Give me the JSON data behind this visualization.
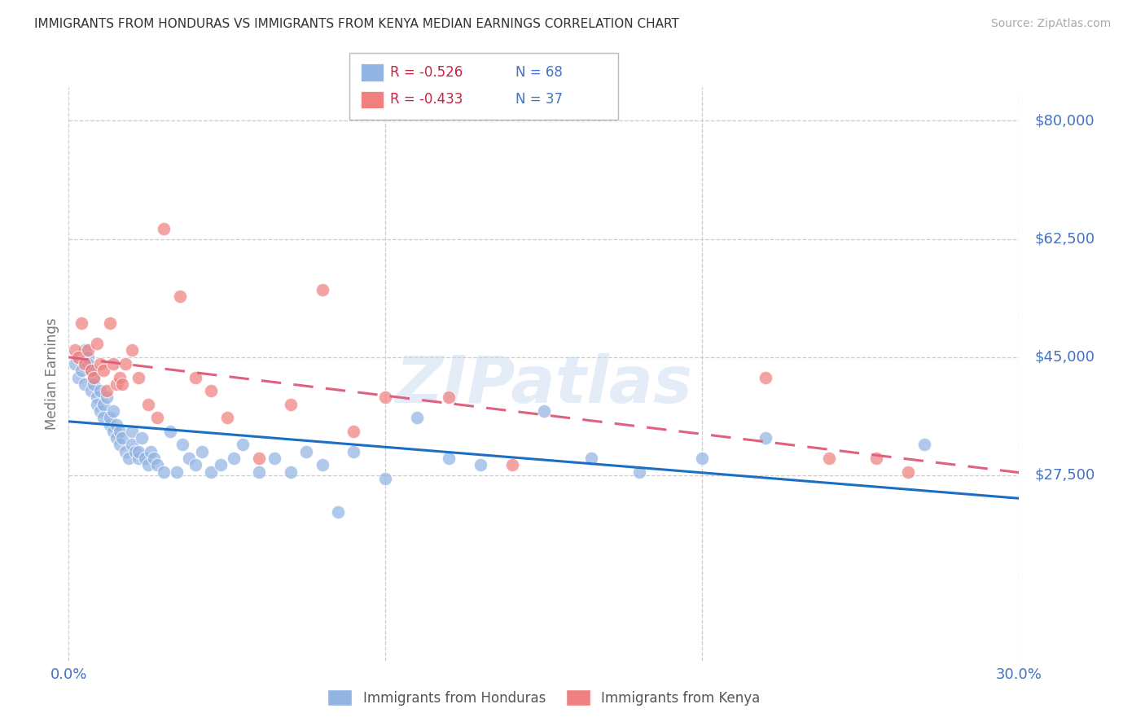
{
  "title": "IMMIGRANTS FROM HONDURAS VS IMMIGRANTS FROM KENYA MEDIAN EARNINGS CORRELATION CHART",
  "source": "Source: ZipAtlas.com",
  "ylabel": "Median Earnings",
  "yticks": [
    27500,
    45000,
    62500,
    80000
  ],
  "ytick_labels": [
    "$27,500",
    "$45,000",
    "$62,500",
    "$80,000"
  ],
  "xlim": [
    0.0,
    0.3
  ],
  "ylim": [
    0,
    85000
  ],
  "legend1_r": "R = -0.526",
  "legend1_n": "N = 68",
  "legend2_r": "R = -0.433",
  "legend2_n": "N = 37",
  "legend_label1": "Immigrants from Honduras",
  "legend_label2": "Immigrants from Kenya",
  "watermark": "ZIPatlas",
  "honduras_color": "#92b4e3",
  "kenya_color": "#f08080",
  "honduras_line_color": "#1a6fc4",
  "kenya_line_color": "#e06080",
  "title_color": "#333333",
  "ytick_color": "#4472c4",
  "xtick_color": "#4472c4",
  "grid_color": "#cccccc",
  "background_color": "#ffffff",
  "honduras_x": [
    0.002,
    0.003,
    0.004,
    0.005,
    0.005,
    0.006,
    0.006,
    0.007,
    0.007,
    0.008,
    0.008,
    0.009,
    0.009,
    0.01,
    0.01,
    0.011,
    0.011,
    0.012,
    0.013,
    0.013,
    0.014,
    0.014,
    0.015,
    0.015,
    0.016,
    0.016,
    0.017,
    0.018,
    0.019,
    0.02,
    0.02,
    0.021,
    0.022,
    0.022,
    0.023,
    0.024,
    0.025,
    0.026,
    0.027,
    0.028,
    0.03,
    0.032,
    0.034,
    0.036,
    0.038,
    0.04,
    0.042,
    0.045,
    0.048,
    0.052,
    0.055,
    0.06,
    0.065,
    0.07,
    0.075,
    0.08,
    0.085,
    0.09,
    0.1,
    0.11,
    0.12,
    0.13,
    0.15,
    0.165,
    0.18,
    0.2,
    0.22,
    0.27
  ],
  "honduras_y": [
    44000,
    42000,
    43000,
    46000,
    41000,
    45000,
    44000,
    43000,
    40000,
    42000,
    41000,
    39000,
    38000,
    40000,
    37000,
    38000,
    36000,
    39000,
    35000,
    36000,
    34000,
    37000,
    33000,
    35000,
    34000,
    32000,
    33000,
    31000,
    30000,
    34000,
    32000,
    31000,
    30000,
    31000,
    33000,
    30000,
    29000,
    31000,
    30000,
    29000,
    28000,
    34000,
    28000,
    32000,
    30000,
    29000,
    31000,
    28000,
    29000,
    30000,
    32000,
    28000,
    30000,
    28000,
    31000,
    29000,
    22000,
    31000,
    27000,
    36000,
    30000,
    29000,
    37000,
    30000,
    28000,
    30000,
    33000,
    32000
  ],
  "kenya_x": [
    0.002,
    0.003,
    0.004,
    0.005,
    0.006,
    0.007,
    0.008,
    0.009,
    0.01,
    0.011,
    0.012,
    0.013,
    0.014,
    0.015,
    0.016,
    0.017,
    0.018,
    0.02,
    0.022,
    0.025,
    0.028,
    0.03,
    0.035,
    0.04,
    0.045,
    0.05,
    0.06,
    0.07,
    0.08,
    0.09,
    0.1,
    0.12,
    0.14,
    0.22,
    0.24,
    0.255,
    0.265
  ],
  "kenya_y": [
    46000,
    45000,
    50000,
    44000,
    46000,
    43000,
    42000,
    47000,
    44000,
    43000,
    40000,
    50000,
    44000,
    41000,
    42000,
    41000,
    44000,
    46000,
    42000,
    38000,
    36000,
    64000,
    54000,
    42000,
    40000,
    36000,
    30000,
    38000,
    55000,
    34000,
    39000,
    39000,
    29000,
    42000,
    30000,
    30000,
    28000
  ]
}
